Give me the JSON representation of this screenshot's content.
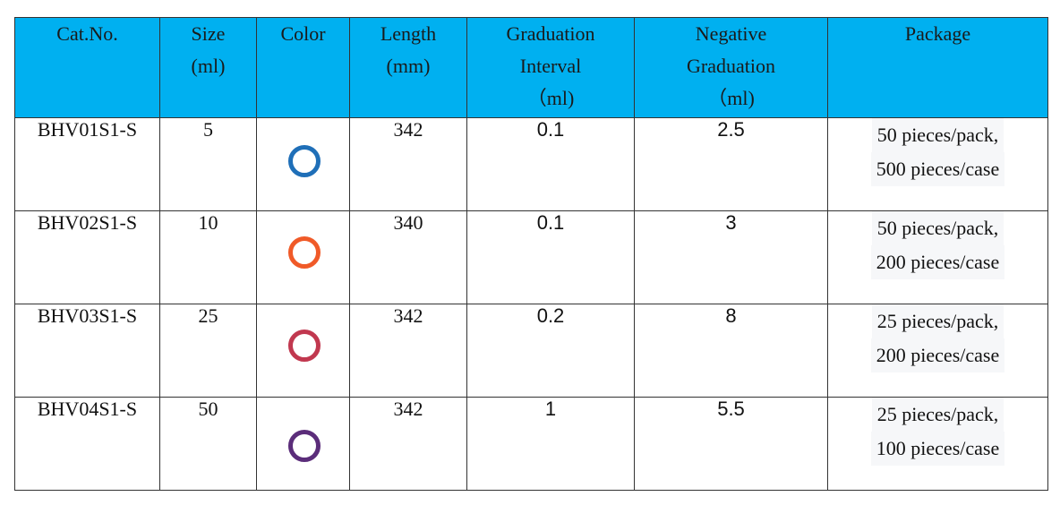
{
  "table": {
    "headers": {
      "cat_no": [
        "Cat.No."
      ],
      "size": [
        "Size",
        "(ml)"
      ],
      "color": [
        "Color"
      ],
      "length": [
        "Length",
        "(mm)"
      ],
      "grad_interval": [
        "Graduation",
        "Interval",
        "（ml)"
      ],
      "neg_graduation": [
        "Negative",
        "Graduation",
        "（ml)"
      ],
      "package": [
        "Package"
      ]
    },
    "rows": [
      {
        "cat_no": "BHV01S1-S",
        "size": "5",
        "color": "#1f6fb8",
        "length": "342",
        "grad_interval": "0.1",
        "neg_graduation": "2.5",
        "package": [
          "50 pieces/pack,",
          "500 pieces/case"
        ]
      },
      {
        "cat_no": "BHV02S1-S",
        "size": "10",
        "color": "#f05a28",
        "length": "340",
        "grad_interval": "0.1",
        "neg_graduation": "3",
        "package": [
          "50 pieces/pack,",
          "200 pieces/case"
        ]
      },
      {
        "cat_no": "BHV03S1-S",
        "size": "25",
        "color": "#c1384f",
        "length": "342",
        "grad_interval": "0.2",
        "neg_graduation": "8",
        "package": [
          "25 pieces/pack,",
          "200 pieces/case"
        ]
      },
      {
        "cat_no": "BHV04S1-S",
        "size": "50",
        "color": "#5b2d7a",
        "length": "342",
        "grad_interval": "1",
        "neg_graduation": "5.5",
        "package": [
          "25 pieces/pack,",
          "100 pieces/case"
        ]
      }
    ]
  }
}
